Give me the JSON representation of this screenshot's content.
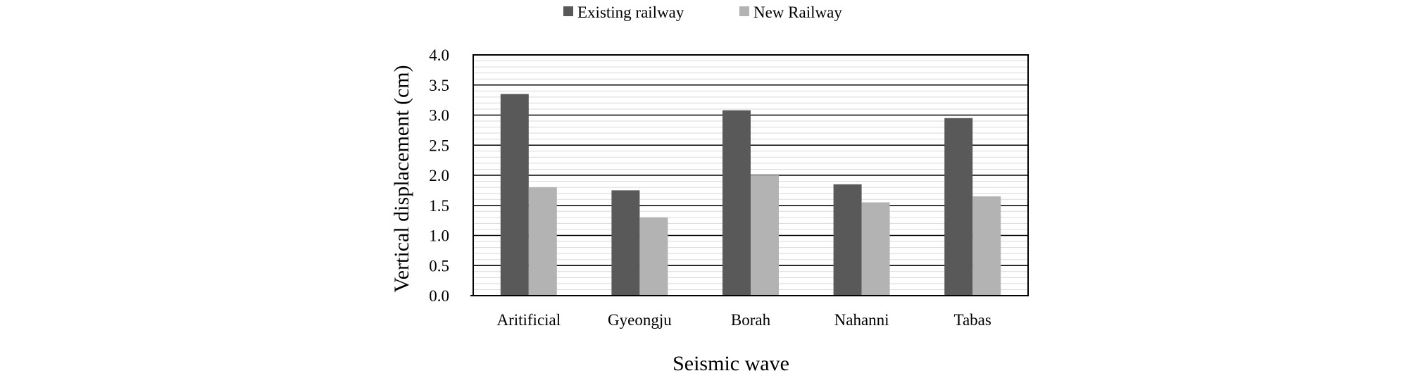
{
  "chart_data": {
    "type": "bar",
    "title": "",
    "xlabel": "Seismic wave",
    "ylabel": "Vertical displacement (cm)",
    "categories": [
      "Aritificial",
      "Gyeongju",
      "Borah",
      "Nahanni",
      "Tabas"
    ],
    "series": [
      {
        "name": "Existing railway",
        "values": [
          3.35,
          1.75,
          3.08,
          1.85,
          2.95
        ],
        "color": "#595959"
      },
      {
        "name": "New Railway",
        "values": [
          1.8,
          1.3,
          2.0,
          1.55,
          1.65
        ],
        "color": "#b3b3b3"
      }
    ],
    "ylim": [
      0,
      4.0
    ],
    "yticks": [
      "0.0",
      "0.5",
      "1.0",
      "1.5",
      "2.0",
      "2.5",
      "3.0",
      "3.5",
      "4.0"
    ],
    "grid": true,
    "legend_position": "top-center"
  }
}
